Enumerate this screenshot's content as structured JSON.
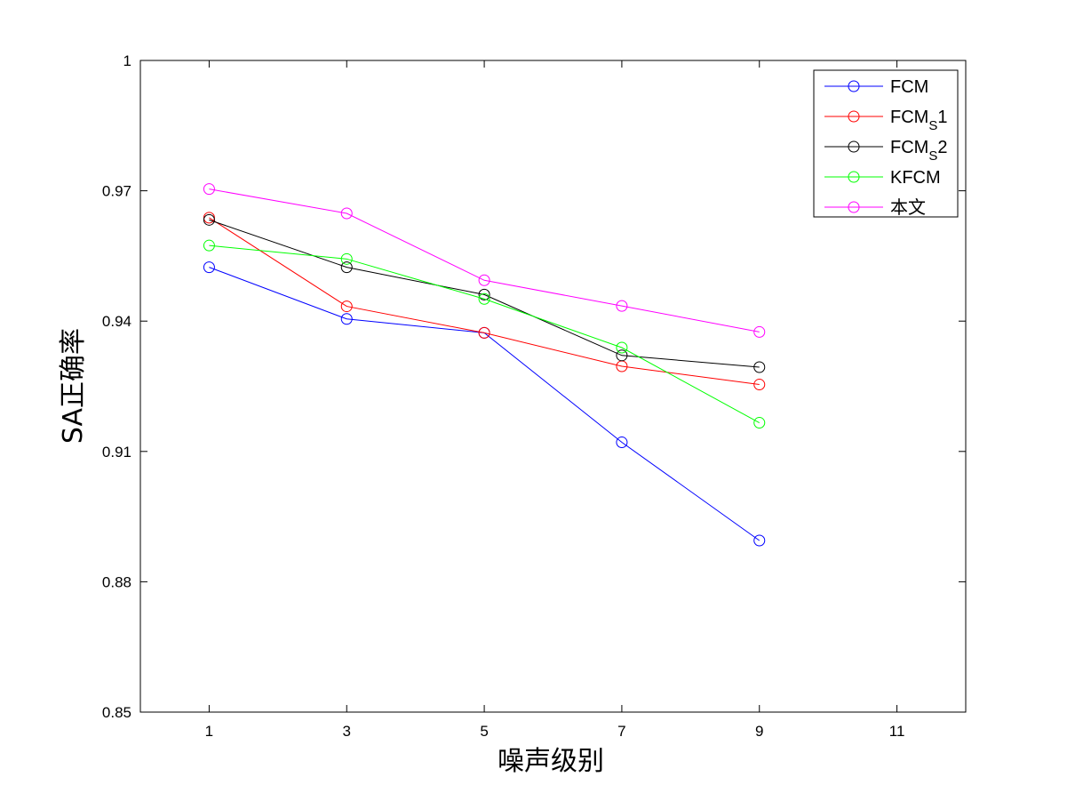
{
  "chart_data": {
    "type": "line",
    "xlabel": "噪声级别",
    "ylabel": "SA正确率",
    "xlim": [
      0,
      12
    ],
    "ylim": [
      0.85,
      1
    ],
    "xticks": [
      1,
      3,
      5,
      7,
      9,
      11
    ],
    "yticks": [
      0.85,
      0.88,
      0.91,
      0.94,
      0.97,
      1
    ],
    "ytick_labels": [
      "0.85",
      "0.88",
      "0.91",
      "0.94",
      "0.97",
      "1"
    ],
    "grid": false,
    "legend_position": "top-right",
    "x": [
      1,
      3,
      5,
      7,
      9
    ],
    "series": [
      {
        "name": "FCM",
        "legend_main": "FCM",
        "legend_sub": "",
        "legend_tail": "",
        "color": "#0000ff",
        "marker": "circle",
        "values": [
          0.9524,
          0.9405,
          0.9373,
          0.9121,
          0.8895
        ]
      },
      {
        "name": "FCMs1",
        "legend_main": "FCM",
        "legend_sub": "S",
        "legend_tail": "1",
        "color": "#ff0000",
        "marker": "circle",
        "values": [
          0.9638,
          0.9434,
          0.9373,
          0.9296,
          0.9254
        ]
      },
      {
        "name": "FCMs2",
        "legend_main": "FCM",
        "legend_sub": "S",
        "legend_tail": "2",
        "color": "#000000",
        "marker": "circle",
        "values": [
          0.9633,
          0.9524,
          0.9461,
          0.9321,
          0.9294
        ]
      },
      {
        "name": "KFCM",
        "legend_main": "KFCM",
        "legend_sub": "",
        "legend_tail": "",
        "color": "#00ff00",
        "marker": "circle",
        "values": [
          0.9574,
          0.9543,
          0.9451,
          0.9339,
          0.9166
        ]
      },
      {
        "name": "本文",
        "legend_main": "本文",
        "legend_sub": "",
        "legend_tail": "",
        "color": "#ff00ff",
        "marker": "circle",
        "values": [
          0.9704,
          0.9648,
          0.9494,
          0.9435,
          0.9375
        ]
      }
    ]
  }
}
